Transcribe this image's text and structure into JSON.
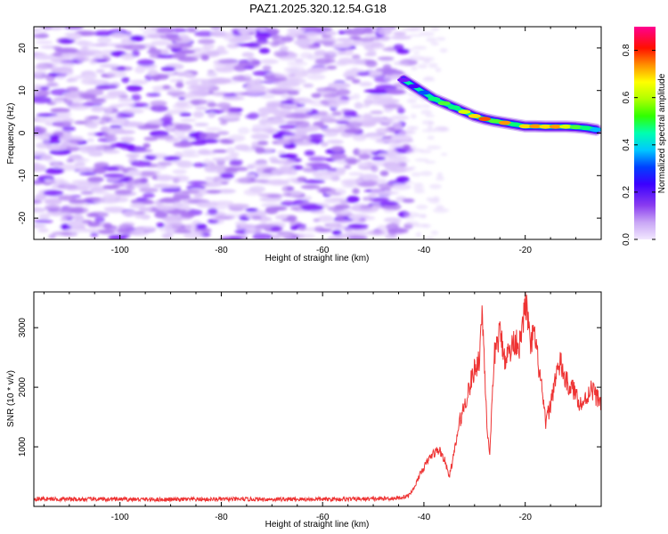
{
  "title": "PAZ1.2025.320.12.54.G18",
  "chart_data": [
    {
      "type": "heatmap",
      "xlabel": "Height of straight line (km)",
      "ylabel": "Frequency (Hz)",
      "xlim": [
        -117,
        -5
      ],
      "ylim": [
        -25,
        25
      ],
      "xticks": [
        -100,
        -80,
        -60,
        -40,
        -20
      ],
      "yticks": [
        -20,
        -10,
        0,
        10,
        20
      ],
      "colorbar": {
        "label": "Normalized spectral amplitude",
        "range": [
          0,
          0.9
        ],
        "ticks": [
          0.0,
          0.2,
          0.4,
          0.6,
          0.8
        ],
        "colormap": [
          "#f0e6ff",
          "#c9a6f5",
          "#9b5cf0",
          "#6a00ff",
          "#0000ff",
          "#00c8ff",
          "#00ff80",
          "#80ff00",
          "#ffff00",
          "#ff8000",
          "#ff0000",
          "#ff0080"
        ]
      },
      "noise_region_x": [
        -117,
        -43
      ],
      "signal_track": [
        {
          "x": -44,
          "y": 12.5,
          "amp": 0.25
        },
        {
          "x": -42,
          "y": 11.0,
          "amp": 0.3
        },
        {
          "x": -40,
          "y": 9.5,
          "amp": 0.4
        },
        {
          "x": -38,
          "y": 8.0,
          "amp": 0.55
        },
        {
          "x": -36,
          "y": 7.0,
          "amp": 0.6
        },
        {
          "x": -34,
          "y": 6.0,
          "amp": 0.55
        },
        {
          "x": -32,
          "y": 5.0,
          "amp": 0.7
        },
        {
          "x": -30,
          "y": 4.0,
          "amp": 0.75
        },
        {
          "x": -28,
          "y": 3.3,
          "amp": 0.85
        },
        {
          "x": -26,
          "y": 2.8,
          "amp": 0.6
        },
        {
          "x": -24,
          "y": 2.4,
          "amp": 0.8
        },
        {
          "x": -22,
          "y": 2.0,
          "amp": 0.55
        },
        {
          "x": -20,
          "y": 1.6,
          "amp": 0.75
        },
        {
          "x": -18,
          "y": 1.6,
          "amp": 0.8
        },
        {
          "x": -16,
          "y": 1.5,
          "amp": 0.75
        },
        {
          "x": -14,
          "y": 1.5,
          "amp": 0.8
        },
        {
          "x": -12,
          "y": 1.5,
          "amp": 0.7
        },
        {
          "x": -10,
          "y": 1.4,
          "amp": 0.6
        },
        {
          "x": -8,
          "y": 1.2,
          "amp": 0.55
        },
        {
          "x": -6,
          "y": 0.8,
          "amp": 0.45
        }
      ]
    },
    {
      "type": "line",
      "xlabel": "Height of straight line (km)",
      "ylabel": "SNR (10 * v/v)",
      "xlim": [
        -117,
        -5
      ],
      "ylim": [
        0,
        3600
      ],
      "xticks": [
        -100,
        -80,
        -60,
        -40,
        -20
      ],
      "yticks": [
        1000,
        2000,
        3000
      ],
      "series": [
        {
          "name": "SNR",
          "color": "#ee3333",
          "x": [
            -117,
            -110,
            -100,
            -90,
            -80,
            -70,
            -60,
            -50,
            -45,
            -43,
            -42,
            -41,
            -40,
            -39,
            -38,
            -37,
            -36,
            -35,
            -34,
            -33,
            -32,
            -31,
            -30,
            -29,
            -28.5,
            -28,
            -27.5,
            -27,
            -26.5,
            -26,
            -25,
            -24,
            -23,
            -22,
            -21,
            -20.5,
            -20,
            -19.5,
            -19,
            -18.5,
            -18,
            -17,
            -16,
            -15,
            -14,
            -13,
            -12,
            -11,
            -10,
            -9,
            -8,
            -7,
            -6,
            -5
          ],
          "y": [
            130,
            120,
            120,
            115,
            120,
            120,
            120,
            125,
            140,
            180,
            300,
            500,
            650,
            800,
            900,
            950,
            800,
            500,
            900,
            1400,
            1700,
            2000,
            2300,
            2500,
            3350,
            2300,
            1300,
            800,
            1800,
            2600,
            2900,
            2500,
            2600,
            2800,
            2700,
            3000,
            3450,
            3200,
            2600,
            2900,
            2750,
            2150,
            1400,
            1700,
            2200,
            2400,
            2100,
            2000,
            1900,
            1700,
            1800,
            2000,
            1850,
            1750
          ]
        }
      ]
    }
  ]
}
